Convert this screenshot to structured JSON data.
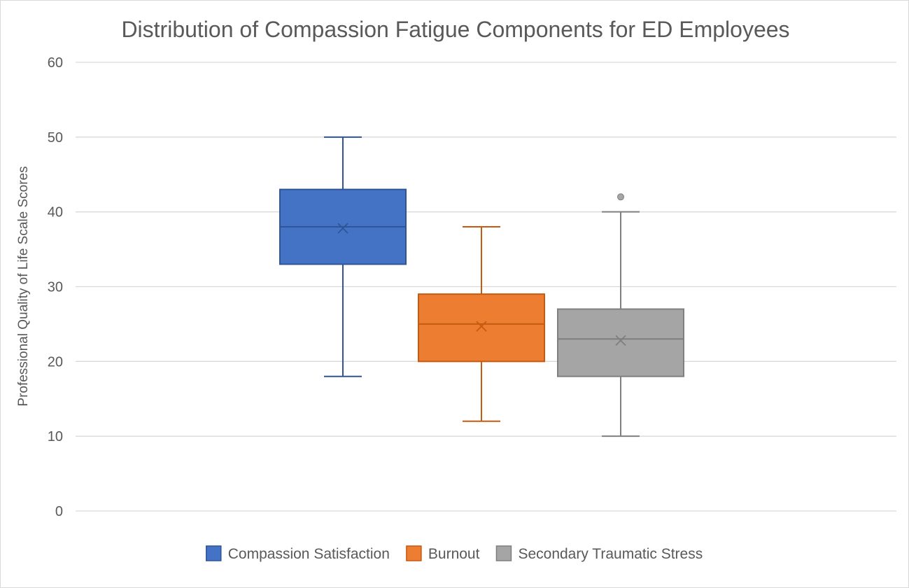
{
  "chart_data": {
    "type": "box",
    "title": "Distribution of Compassion Fatigue Components for ED Employees",
    "xlabel": "",
    "ylabel": "Professional Quality of Life Scale Scores",
    "ylim": [
      0,
      60
    ],
    "yticks": [
      0,
      10,
      20,
      30,
      40,
      50,
      60
    ],
    "grid": true,
    "legend_position": "bottom",
    "series": [
      {
        "name": "Compassion Satisfaction",
        "color": "#4472c4",
        "edge_color": "#2f5597",
        "min": 18,
        "q1": 33,
        "median": 38,
        "q3": 43,
        "max": 50,
        "mean": 37.8,
        "outliers": []
      },
      {
        "name": "Burnout",
        "color": "#ed7d31",
        "edge_color": "#c55a11",
        "min": 12,
        "q1": 20,
        "median": 25,
        "q3": 29,
        "max": 38,
        "mean": 24.7,
        "outliers": []
      },
      {
        "name": "Secondary Traumatic Stress",
        "color": "#a5a5a5",
        "edge_color": "#7f7f7f",
        "min": 10,
        "q1": 18,
        "median": 23,
        "q3": 27,
        "max": 40,
        "mean": 22.8,
        "outliers": [
          42
        ]
      }
    ]
  }
}
